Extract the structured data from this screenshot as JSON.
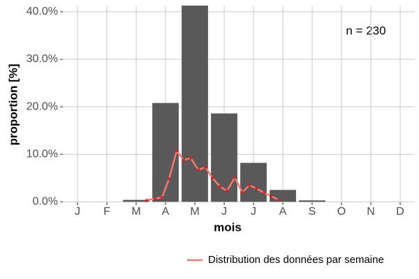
{
  "chart_data": {
    "type": "bar",
    "categories": [
      "J",
      "F",
      "M",
      "A",
      "M",
      "J",
      "J",
      "A",
      "S",
      "O",
      "N",
      "D"
    ],
    "values": [
      0,
      0,
      0.4,
      20.8,
      41.3,
      18.6,
      8.2,
      2.5,
      0.3,
      0,
      0,
      0
    ],
    "color": "#595959",
    "overlay": {
      "type": "line",
      "name": "Distribution des données par semaine",
      "color": "#f8766d",
      "point_color": "#e41a1c",
      "x": [
        3.36,
        3.64,
        3.88,
        4.12,
        4.38,
        4.62,
        4.86,
        5.12,
        5.36,
        5.6,
        5.86,
        6.1,
        6.36,
        6.62,
        6.86,
        7.1,
        7.36,
        7.6,
        7.86
      ],
      "values": [
        0.3,
        0.7,
        0.9,
        4.8,
        10.7,
        8.8,
        9.2,
        6.7,
        7.3,
        5.0,
        3.2,
        2.3,
        5.1,
        2.0,
        3.5,
        2.8,
        1.9,
        1.2,
        0.4
      ]
    },
    "xlim": [
      0.5,
      12.5
    ],
    "ylim": [
      -0.1,
      41.3
    ],
    "yticks": [
      {
        "value": 0,
        "label": "0.0%"
      },
      {
        "value": 10,
        "label": "10.0%"
      },
      {
        "value": 20,
        "label": "20.0%"
      },
      {
        "value": 30,
        "label": "30.0%"
      },
      {
        "value": 40,
        "label": "40.0%"
      }
    ],
    "grid": true,
    "x_label": "mois",
    "y_label": "proportion [%]",
    "annotation": "n = 230",
    "legend_position": "bottom"
  }
}
